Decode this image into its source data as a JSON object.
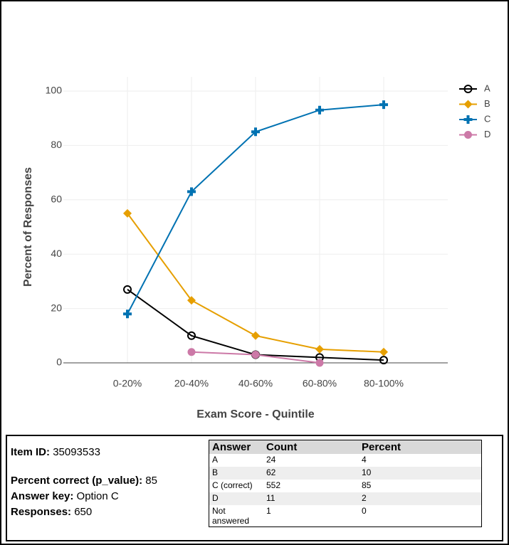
{
  "chart_data": {
    "type": "line",
    "x_label": "Exam Score - Quintile",
    "y_label": "Percent of Responses",
    "categories": [
      "0-20%",
      "20-40%",
      "40-60%",
      "60-80%",
      "80-100%"
    ],
    "series": [
      {
        "name": "A",
        "color": "#000000",
        "marker": "open-circle",
        "values": [
          27,
          10,
          3,
          2,
          1
        ]
      },
      {
        "name": "B",
        "color": "#E69F00",
        "marker": "diamond",
        "values": [
          55,
          23,
          10,
          5,
          4
        ]
      },
      {
        "name": "C",
        "color": "#0072B2",
        "marker": "cross",
        "values": [
          18,
          63,
          85,
          93,
          95
        ]
      },
      {
        "name": "D",
        "color": "#CC79A7",
        "marker": "circle",
        "values": [
          null,
          4,
          3,
          0,
          null
        ]
      }
    ],
    "ylim": [
      0,
      100
    ],
    "yticks": [
      0,
      20,
      40,
      60,
      80,
      100
    ],
    "grid": true
  },
  "item": {
    "fields": [
      {
        "label": "Item ID:",
        "value": 35093533
      },
      {
        "label": "Percent correct (p_value):",
        "value": 85
      },
      {
        "label": "Answer key:",
        "value": "Option C"
      },
      {
        "label": "Responses:",
        "value": 650
      }
    ]
  },
  "table": {
    "header": [
      "Answer",
      "Count",
      "Percent"
    ],
    "rows": [
      [
        "A",
        24,
        4
      ],
      [
        "B",
        62,
        10
      ],
      [
        "C (correct)",
        552,
        85
      ],
      [
        "D",
        11,
        2
      ],
      [
        "Not answered",
        1,
        0
      ]
    ]
  }
}
